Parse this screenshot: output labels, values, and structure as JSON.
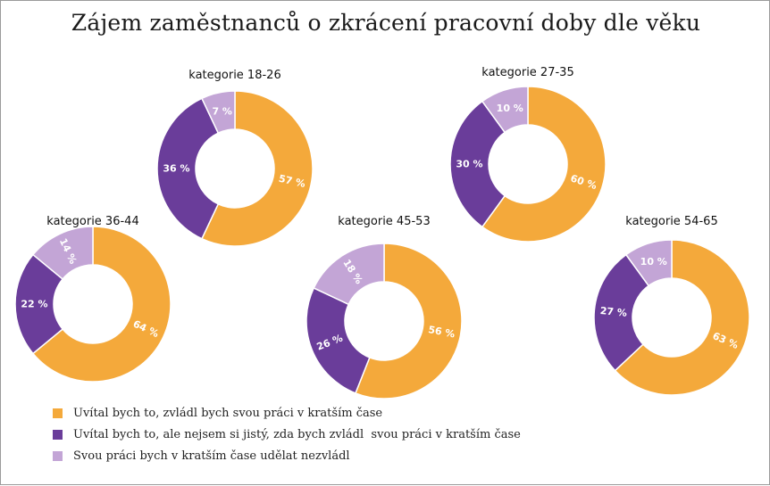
{
  "chart_data": {
    "type": "pie",
    "title": "Zájem zaměstnanců o zkrácení pracovní doby dle věku",
    "legend": "bottom-left",
    "series_names": [
      "Uvítal bych to, zvládl bych svou práci v kratším čase",
      "Uvítal bych to, ale nejsem si jistý, zda bych zvládl  svou práci v kratším čase",
      "Svou práci bych v kratším čase udělat nezvládl"
    ],
    "colors": [
      "#f4a93b",
      "#6a3d9a",
      "#c3a5d6"
    ],
    "charts": [
      {
        "label": "kategorie 18-26",
        "values": [
          57,
          36,
          7
        ],
        "value_labels": [
          "57 %",
          "36 %",
          "7 %"
        ]
      },
      {
        "label": "kategorie 27-35",
        "values": [
          60,
          30,
          10
        ],
        "value_labels": [
          "60 %",
          "30 %",
          "10 %"
        ]
      },
      {
        "label": "kategorie 36-44",
        "values": [
          64,
          22,
          14
        ],
        "value_labels": [
          "64 %",
          "22 %",
          "14 %"
        ]
      },
      {
        "label": "kategorie 45-53",
        "values": [
          56,
          26,
          18
        ],
        "value_labels": [
          "56 %",
          "26 %",
          "18 %"
        ]
      },
      {
        "label": "kategorie 54-65",
        "values": [
          63,
          27,
          10
        ],
        "value_labels": [
          "63 %",
          "27 %",
          "10 %"
        ]
      }
    ]
  }
}
